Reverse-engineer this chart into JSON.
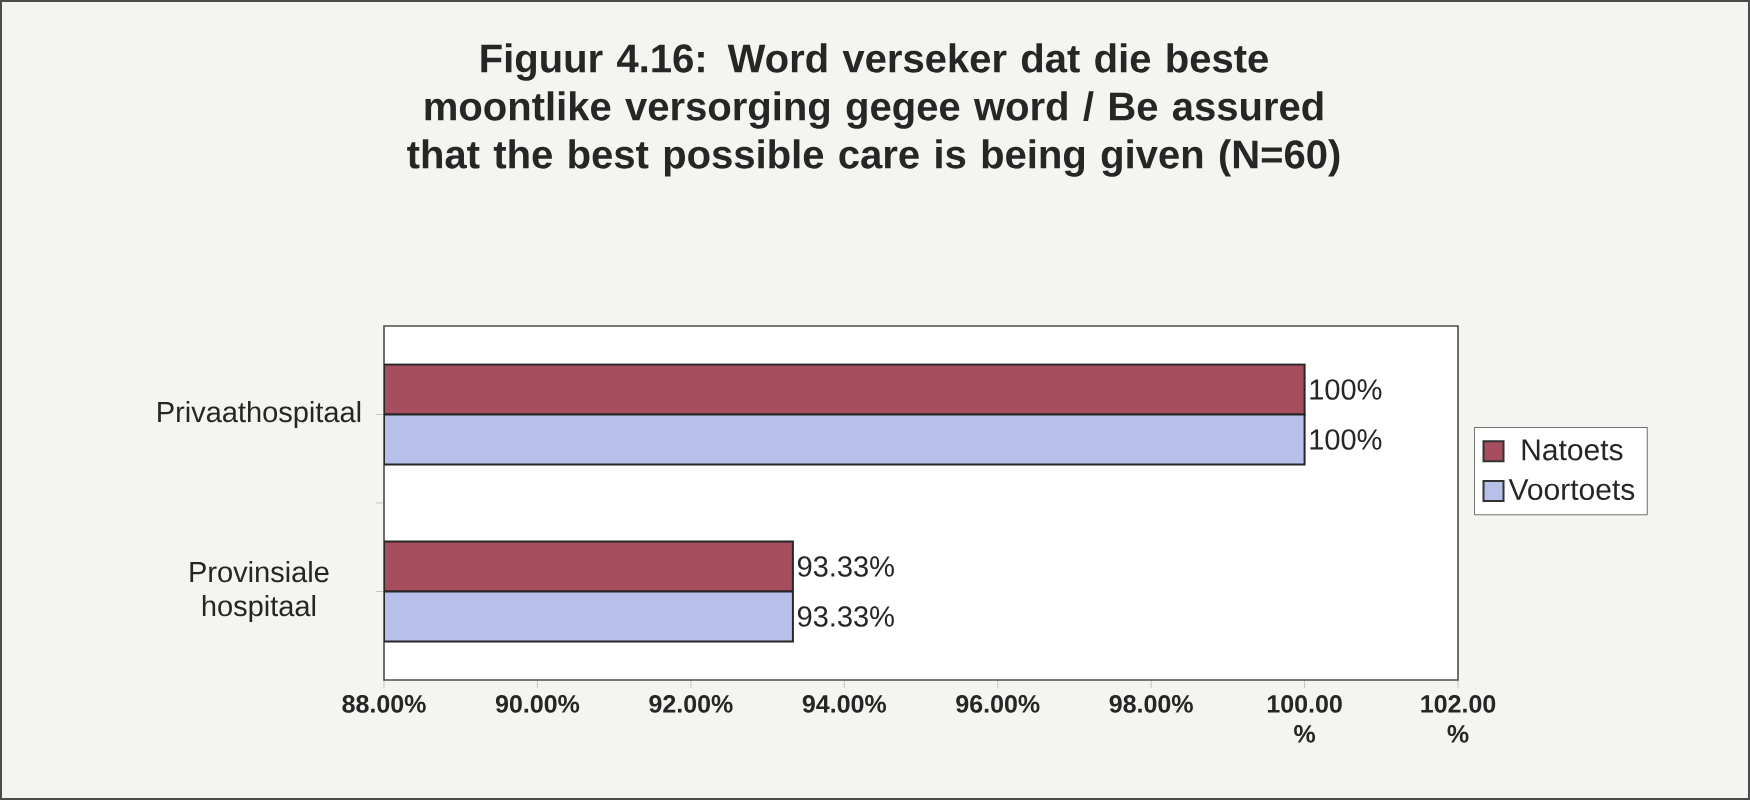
{
  "chart_data": {
    "type": "bar",
    "orientation": "horizontal",
    "title": "Figuur 4.16: Word verseker dat die beste moontlike versorging gegee word / Be assured that the best possible care is being given (N=60)",
    "categories": [
      "Privaathospitaal",
      "Provinsiale hospitaal"
    ],
    "series": [
      {
        "name": "Natoets",
        "color": "#a64d5e",
        "values": [
          100,
          93.33
        ],
        "value_labels": [
          "100%",
          "93.33%"
        ]
      },
      {
        "name": "Voortoets",
        "color": "#b7c0e8",
        "values": [
          100,
          93.33
        ],
        "value_labels": [
          "100%",
          "93.33%"
        ]
      }
    ],
    "xlim": [
      88,
      102
    ],
    "xticks": [
      {
        "value": 88,
        "label": "88.00%"
      },
      {
        "value": 90,
        "label": "90.00%"
      },
      {
        "value": 92,
        "label": "92.00%"
      },
      {
        "value": 94,
        "label": "94.00%"
      },
      {
        "value": 96,
        "label": "96.00%"
      },
      {
        "value": 98,
        "label": "98.00%"
      },
      {
        "value": 100,
        "label": "100.00 %"
      },
      {
        "value": 102,
        "label": "102.00 %"
      }
    ],
    "legend": "right",
    "grid": false
  }
}
